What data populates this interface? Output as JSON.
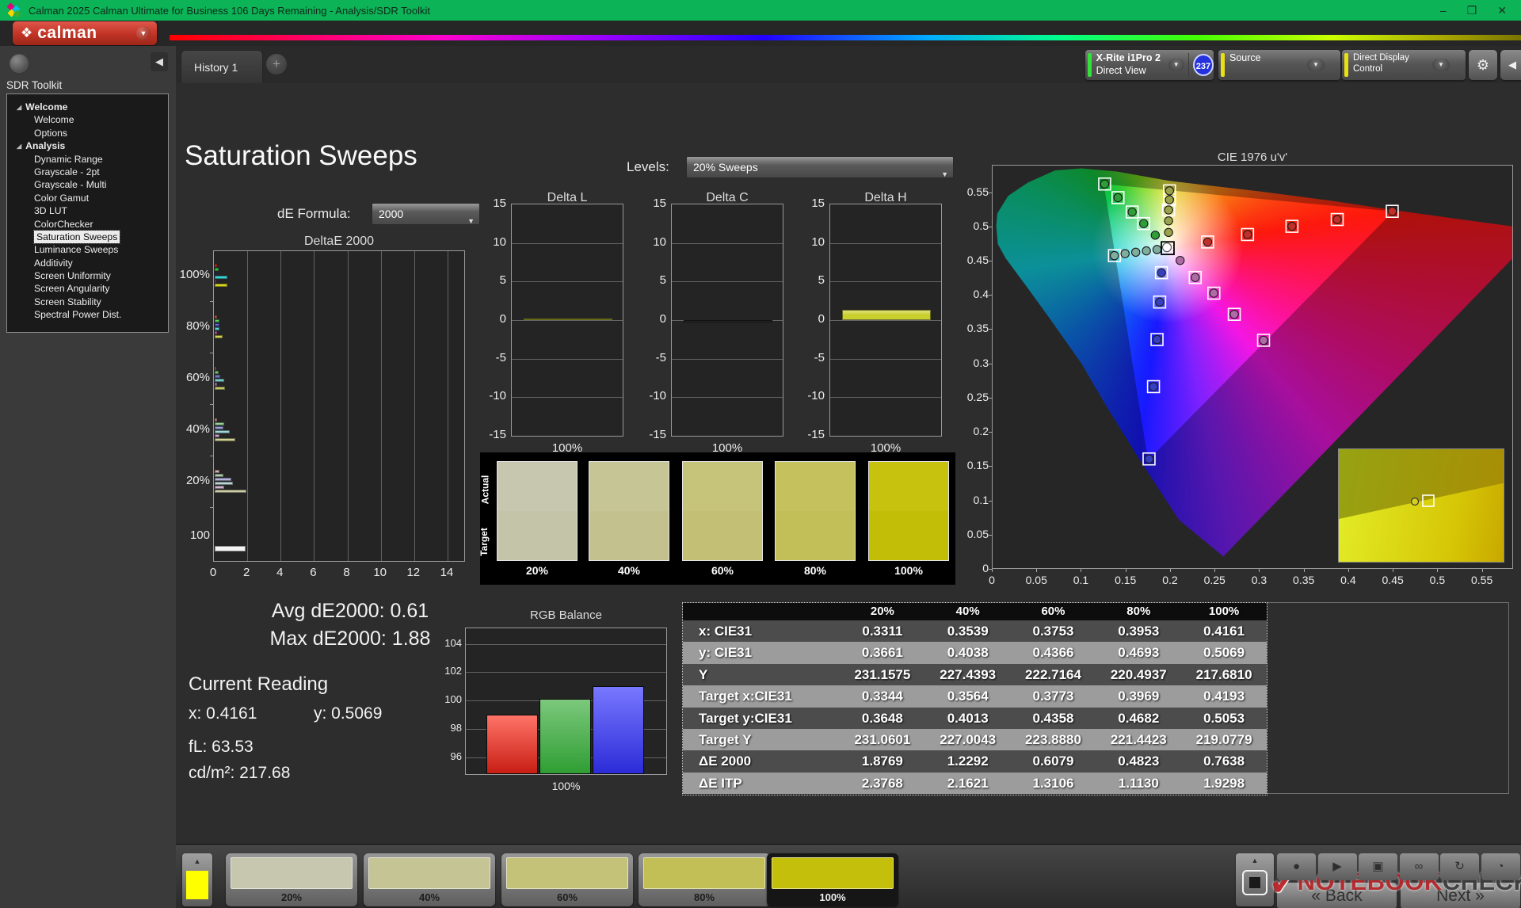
{
  "titlebar": {
    "title": "Calman 2025 Calman Ultimate for Business 106 Days Remaining  - Analysis/SDR Toolkit",
    "minimize": "–",
    "restore": "❐",
    "close": "✕"
  },
  "logo": {
    "text": "calman",
    "glyph": "❖",
    "chevron": "▼"
  },
  "tabs": {
    "history": "History 1",
    "add": "+"
  },
  "topbar": {
    "meter": {
      "line1": "X-Rite i1Pro 2",
      "line2": "Direct View",
      "badge": "237",
      "stripe_color": "#35e03c"
    },
    "source": {
      "label": "Source",
      "stripe_color": "#e8e012"
    },
    "display_control": {
      "label": "Direct Display Control",
      "stripe_color": "#e8e012"
    },
    "gear": "⚙",
    "collapse": "◀"
  },
  "sidebar": {
    "title": "SDR Toolkit",
    "collapse": "◀",
    "tree": [
      {
        "label": "Welcome",
        "group": true
      },
      {
        "label": "Welcome"
      },
      {
        "label": "Options"
      },
      {
        "label": "Analysis",
        "group": true
      },
      {
        "label": "Dynamic Range"
      },
      {
        "label": "Grayscale - 2pt"
      },
      {
        "label": "Grayscale - Multi"
      },
      {
        "label": "Color Gamut"
      },
      {
        "label": "3D LUT"
      },
      {
        "label": "ColorChecker"
      },
      {
        "label": "Saturation Sweeps",
        "selected": true
      },
      {
        "label": "Luminance Sweeps"
      },
      {
        "label": "Additivity"
      },
      {
        "label": "Screen Uniformity"
      },
      {
        "label": "Screen Angularity"
      },
      {
        "label": "Screen Stability"
      },
      {
        "label": "Spectral Power Dist."
      }
    ]
  },
  "main": {
    "heading": "Saturation Sweeps",
    "levels_label": "Levels:",
    "levels_value": "20% Sweeps",
    "de_formula_label": "dE Formula:",
    "de_formula_value": "2000",
    "stats": {
      "avg": "Avg dE2000: 0.61",
      "max": "Max dE2000: 1.88",
      "current_title": "Current Reading",
      "x": "x: 0.4161",
      "y": "y: 0.5069",
      "fl": "fL: 63.53",
      "cdm2": "cd/m²: 217.68"
    }
  },
  "swatch_panel": {
    "actual_label": "Actual",
    "target_label": "Target",
    "items": [
      {
        "label": "20%",
        "actual": "#c6c7ae",
        "target": "#c3c4a8"
      },
      {
        "label": "40%",
        "actual": "#c6c595",
        "target": "#c3c28e"
      },
      {
        "label": "60%",
        "actual": "#c6c37b",
        "target": "#c3c075"
      },
      {
        "label": "80%",
        "actual": "#c5c25e",
        "target": "#c2bf58"
      },
      {
        "label": "100%",
        "actual": "#c6c20e",
        "target": "#c2be08"
      }
    ]
  },
  "chart_data": {
    "deltae2000": {
      "type": "bar",
      "title": "DeltaE 2000",
      "orientation": "horizontal",
      "xlim": [
        0,
        15
      ],
      "xticks": [
        "0",
        "2",
        "4",
        "6",
        "8",
        "10",
        "12",
        "14"
      ],
      "groups": [
        {
          "label": "100%",
          "colors": [
            "#e01b10",
            "#1fc12c",
            "#2b2bd6",
            "#28d3d3",
            "#d32bd3",
            "#d6d60e"
          ],
          "values": [
            0.15,
            0.22,
            0.05,
            0.74,
            0.06,
            0.76
          ]
        },
        {
          "label": "80%",
          "colors": [
            "#e0483e",
            "#3fc146",
            "#4848d0",
            "#45c8c8",
            "#c855c8",
            "#c9c93a"
          ],
          "values": [
            0.12,
            0.26,
            0.3,
            0.3,
            0.13,
            0.48
          ]
        },
        {
          "label": "60%",
          "colors": [
            "#db6a60",
            "#63bd67",
            "#6a6ace",
            "#6cc6c6",
            "#c274c2",
            "#c3c35e"
          ],
          "values": [
            0.1,
            0.22,
            0.32,
            0.56,
            0.16,
            0.61
          ]
        },
        {
          "label": "40%",
          "colors": [
            "#d98c84",
            "#85c288",
            "#8a8ace",
            "#93cccc",
            "#c492c4",
            "#c6c685"
          ],
          "values": [
            0.16,
            0.55,
            0.5,
            0.9,
            0.3,
            1.23
          ]
        },
        {
          "label": "20%",
          "colors": [
            "#d4a8a4",
            "#a8c8a8",
            "#adadd8",
            "#b4d2d2",
            "#ccaecc",
            "#c9c9a2"
          ],
          "values": [
            0.3,
            0.52,
            1.0,
            1.1,
            0.55,
            1.88
          ]
        },
        {
          "label": "100",
          "colors": [
            "#f4f4f4"
          ],
          "values": [
            1.84
          ]
        }
      ]
    },
    "delta_l": {
      "type": "bar",
      "title": "Delta L",
      "ylim": [
        -15,
        15
      ],
      "yticks": [
        "15",
        "10",
        "5",
        "0",
        "-5",
        "-10",
        "-15"
      ],
      "xlabel": "100%",
      "value": 0.2,
      "color": "#c9cf2b"
    },
    "delta_c": {
      "type": "bar",
      "title": "Delta C",
      "ylim": [
        -15,
        15
      ],
      "yticks": [
        "15",
        "10",
        "5",
        "0",
        "-5",
        "-10",
        "-15"
      ],
      "xlabel": "100%",
      "value": -0.3,
      "color": "#0b0b0b"
    },
    "delta_h": {
      "type": "bar",
      "title": "Delta H",
      "ylim": [
        -15,
        15
      ],
      "yticks": [
        "15",
        "10",
        "5",
        "0",
        "-5",
        "-10",
        "-15"
      ],
      "xlabel": "100%",
      "value": 1.3,
      "color": "#c9cf2b"
    },
    "rgb_balance": {
      "type": "bar",
      "title": "RGB Balance",
      "xlabel": "100%",
      "ylim": [
        94.8,
        105.1
      ],
      "yticks": [
        "104",
        "102",
        "100",
        "98",
        "96"
      ],
      "series": [
        {
          "name": "Red",
          "value": 99.0,
          "color_top": "#ff7468",
          "color_bot": "#c81e14"
        },
        {
          "name": "Green",
          "value": 100.1,
          "color_top": "#7cc87c",
          "color_bot": "#2f9e33"
        },
        {
          "name": "Blue",
          "value": 101.0,
          "color_top": "#7878ff",
          "color_bot": "#2c2cd8"
        }
      ]
    },
    "cie1976": {
      "type": "scatter",
      "title": "CIE 1976 u'v'",
      "xlim": [
        0,
        0.585
      ],
      "ylim": [
        0,
        0.59
      ],
      "xticks": [
        "0",
        "0.05",
        "0.1",
        "0.15",
        "0.2",
        "0.25",
        "0.3",
        "0.35",
        "0.4",
        "0.45",
        "0.5",
        "0.55"
      ],
      "yticks": [
        "0",
        "0.05",
        "0.1",
        "0.15",
        "0.2",
        "0.25",
        "0.3",
        "0.35",
        "0.4",
        "0.45",
        "0.5",
        "0.55"
      ],
      "white_point": [
        0.197,
        0.469
      ],
      "gamut_triangle": {
        "red": [
          0.451,
          0.523
        ],
        "green": [
          0.125,
          0.563
        ],
        "blue": [
          0.175,
          0.158
        ]
      },
      "sweeps": [
        {
          "name": "red",
          "color": "#c03028",
          "squares": [
            0,
            1,
            2,
            3,
            4
          ],
          "points": [
            [
              0.242,
              0.478
            ],
            [
              0.287,
              0.489
            ],
            [
              0.337,
              0.501
            ],
            [
              0.388,
              0.511
            ],
            [
              0.45,
              0.523
            ]
          ]
        },
        {
          "name": "green",
          "color": "#2f9e38",
          "squares": [
            1,
            2,
            3,
            4
          ],
          "points": [
            [
              0.183,
              0.488
            ],
            [
              0.17,
              0.505
            ],
            [
              0.157,
              0.522
            ],
            [
              0.141,
              0.543
            ],
            [
              0.126,
              0.563
            ]
          ]
        },
        {
          "name": "blue",
          "color": "#3540c0",
          "squares": [
            0,
            1,
            2,
            3,
            4
          ],
          "points": [
            [
              0.19,
              0.433
            ],
            [
              0.188,
              0.39
            ],
            [
              0.185,
              0.335
            ],
            [
              0.181,
              0.266
            ],
            [
              0.176,
              0.16
            ]
          ]
        },
        {
          "name": "cyan",
          "color": "#7fae9e",
          "squares": [
            4
          ],
          "points": [
            [
              0.185,
              0.467
            ],
            [
              0.173,
              0.465
            ],
            [
              0.161,
              0.463
            ],
            [
              0.149,
              0.461
            ],
            [
              0.137,
              0.458
            ]
          ]
        },
        {
          "name": "magenta",
          "color": "#b06aa8",
          "squares": [
            1,
            2,
            3,
            4
          ],
          "points": [
            [
              0.211,
              0.451
            ],
            [
              0.228,
              0.426
            ],
            [
              0.249,
              0.403
            ],
            [
              0.272,
              0.372
            ],
            [
              0.305,
              0.334
            ]
          ]
        },
        {
          "name": "yellow",
          "color": "#9aa24a",
          "squares": [
            2,
            3,
            4
          ],
          "points": [
            [
              0.198,
              0.492
            ],
            [
              0.198,
              0.509
            ],
            [
              0.198,
              0.525
            ],
            [
              0.199,
              0.54
            ],
            [
              0.199,
              0.553
            ]
          ]
        }
      ]
    },
    "results_table": {
      "type": "table",
      "columns": [
        "20%",
        "40%",
        "60%",
        "80%",
        "100%"
      ],
      "rows": [
        {
          "label": "x: CIE31",
          "values": [
            "0.3311",
            "0.3539",
            "0.3753",
            "0.3953",
            "0.4161"
          ]
        },
        {
          "label": "y: CIE31",
          "values": [
            "0.3661",
            "0.4038",
            "0.4366",
            "0.4693",
            "0.5069"
          ]
        },
        {
          "label": "Y",
          "values": [
            "231.1575",
            "227.4393",
            "222.7164",
            "220.4937",
            "217.6810"
          ]
        },
        {
          "label": "Target x:CIE31",
          "values": [
            "0.3344",
            "0.3564",
            "0.3773",
            "0.3969",
            "0.4193"
          ]
        },
        {
          "label": "Target y:CIE31",
          "values": [
            "0.3648",
            "0.4013",
            "0.4358",
            "0.4682",
            "0.5053"
          ]
        },
        {
          "label": "Target Y",
          "values": [
            "231.0601",
            "227.0043",
            "223.8880",
            "221.4423",
            "219.0779"
          ]
        },
        {
          "label": "ΔE 2000",
          "values": [
            "1.8769",
            "1.2292",
            "0.6079",
            "0.4823",
            "0.7638"
          ]
        },
        {
          "label": "ΔE ITP",
          "values": [
            "2.3768",
            "2.1621",
            "1.3106",
            "1.1130",
            "1.9298"
          ]
        }
      ]
    }
  },
  "bottom_bar": {
    "patch_color": "#ffff00",
    "up_arrow": "▲",
    "swatches": [
      {
        "label": "20%",
        "color": "#c6c7ae"
      },
      {
        "label": "40%",
        "color": "#c5c494"
      },
      {
        "label": "60%",
        "color": "#c4c179"
      },
      {
        "label": "80%",
        "color": "#c2bf56"
      },
      {
        "label": "100%",
        "color": "#c3bf0a",
        "selected": true
      }
    ],
    "icons": [
      "record",
      "play",
      "clip",
      "loop",
      "refresh",
      "timer"
    ],
    "back": "Back",
    "next": "Next",
    "back_chevron": "«",
    "next_chevron": "»"
  },
  "watermark": {
    "check": "✓",
    "word1": "NOTEBOOK",
    "word2": "CHECK"
  }
}
